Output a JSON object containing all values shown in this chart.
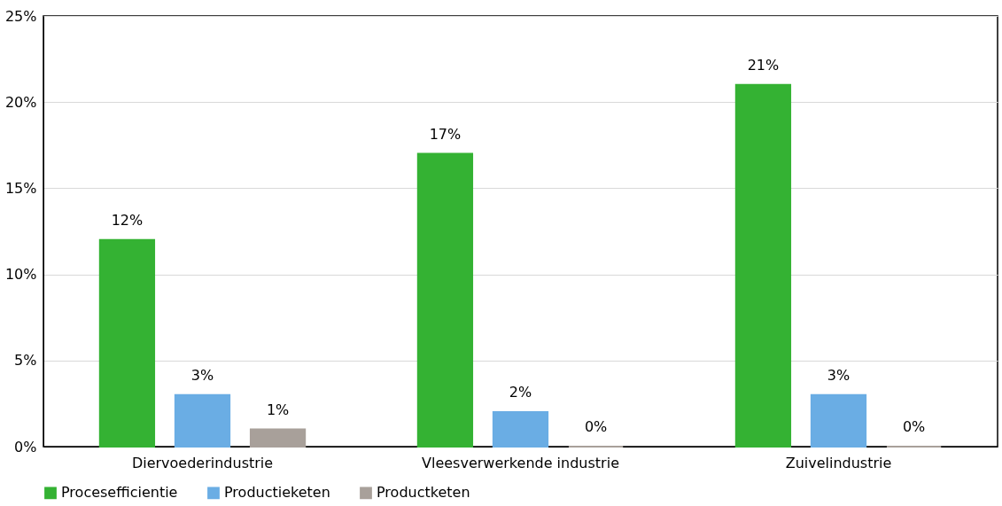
{
  "chart_data": {
    "type": "bar",
    "categories": [
      "Diervoederindustrie",
      "Vleesverwerkende industrie",
      "Zuivelindustrie"
    ],
    "series": [
      {
        "name": "Procesefficientie",
        "color": "#34b233",
        "values": [
          12,
          17,
          21
        ],
        "value_labels": [
          "12%",
          "17%",
          "21%"
        ]
      },
      {
        "name": "Productieketen",
        "color": "#6aade4",
        "values": [
          3,
          2,
          3
        ],
        "value_labels": [
          "3%",
          "2%",
          "3%"
        ]
      },
      {
        "name": "Productketen",
        "color": "#a8a09a",
        "values": [
          1,
          0,
          0
        ],
        "value_labels": [
          "1%",
          "0%",
          "0%"
        ]
      }
    ],
    "ylim": [
      0,
      25
    ],
    "yticks": [
      {
        "value": 0,
        "label": "0%"
      },
      {
        "value": 5,
        "label": "5%"
      },
      {
        "value": 10,
        "label": "10%"
      },
      {
        "value": 15,
        "label": "15%"
      },
      {
        "value": 20,
        "label": "20%"
      },
      {
        "value": 25,
        "label": "25%"
      }
    ],
    "grid": "y",
    "legend": "bottom"
  }
}
